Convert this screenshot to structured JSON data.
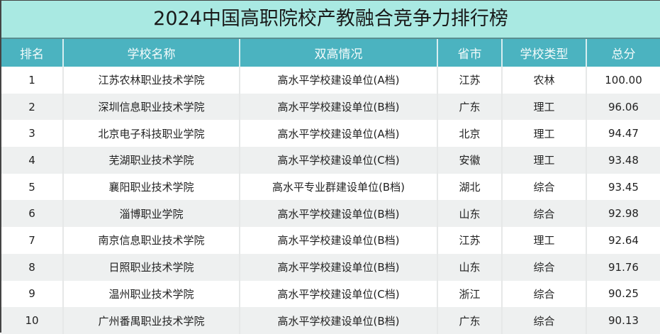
{
  "title": "2024中国高职院校产教融合竞争力排行榜",
  "columns": [
    "排名",
    "学校名称",
    "双高情况",
    "省市",
    "学校类型",
    "总分"
  ],
  "rows": [
    [
      "1",
      "江苏农林职业技术学院",
      "高水平学校建设单位(A档)",
      "江苏",
      "农林",
      "100.00"
    ],
    [
      "2",
      "深圳信息职业技术学院",
      "高水平学校建设单位(B档)",
      "广东",
      "理工",
      "96.06"
    ],
    [
      "3",
      "北京电子科技职业学院",
      "高水平学校建设单位(A档)",
      "北京",
      "理工",
      "94.47"
    ],
    [
      "4",
      "芜湖职业技术学院",
      "高水平学校建设单位(C档)",
      "安徽",
      "理工",
      "93.48"
    ],
    [
      "5",
      "襄阳职业技术学院",
      "高水平专业群建设单位(B档)",
      "湖北",
      "综合",
      "93.45"
    ],
    [
      "6",
      "淄博职业学院",
      "高水平学校建设单位(B档)",
      "山东",
      "综合",
      "92.98"
    ],
    [
      "7",
      "南京信息职业技术学院",
      "高水平学校建设单位(B档)",
      "江苏",
      "理工",
      "92.64"
    ],
    [
      "8",
      "日照职业技术学院",
      "高水平学校建设单位(B档)",
      "山东",
      "综合",
      "91.76"
    ],
    [
      "9",
      "温州职业技术学院",
      "高水平学校建设单位(C档)",
      "浙江",
      "综合",
      "90.25"
    ],
    [
      "10",
      "广州番禺职业技术学院",
      "高水平学校建设单位(B档)",
      "广东",
      "综合",
      "90.13"
    ]
  ],
  "colors": {
    "title_bg": "#a9e9e2",
    "header_bg": "#4bb3c0",
    "stripe": "#eef0f0"
  }
}
